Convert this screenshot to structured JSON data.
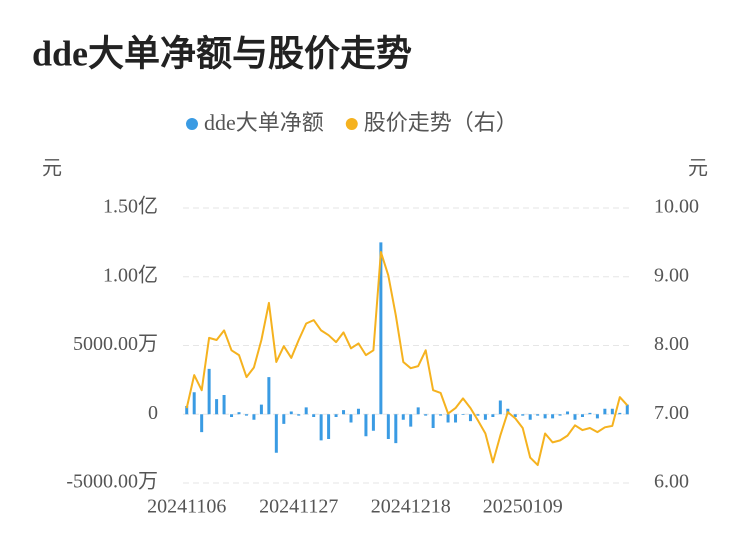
{
  "chart_data": {
    "type": "bar-line",
    "title": "dde大单净额与股价走势",
    "y_label": "元",
    "y2_label": "元",
    "categories": [
      "20241106",
      null,
      null,
      null,
      null,
      null,
      null,
      null,
      null,
      null,
      null,
      null,
      null,
      null,
      null,
      "20241127",
      null,
      null,
      null,
      null,
      null,
      null,
      null,
      null,
      null,
      null,
      null,
      null,
      null,
      null,
      "20241218",
      null,
      null,
      null,
      null,
      null,
      null,
      null,
      null,
      null,
      null,
      null,
      null,
      null,
      null,
      "20250109",
      null,
      null,
      null,
      null,
      null,
      null,
      null,
      null,
      null,
      null,
      null,
      null,
      null,
      null
    ],
    "series": [
      {
        "name": "dde大单净额",
        "type": "bar",
        "color": "#3a9be3",
        "values": [
          600,
          1600,
          -1300,
          3300,
          1100,
          1400,
          -200,
          150,
          -100,
          -400,
          700,
          2700,
          -2800,
          -700,
          200,
          -100,
          500,
          -200,
          -1900,
          -1800,
          -200,
          300,
          -600,
          400,
          -1600,
          -1200,
          12500,
          -1800,
          -2100,
          -400,
          -900,
          500,
          -100,
          -1000,
          -100,
          -600,
          -600,
          -50,
          -500,
          -100,
          -400,
          -200,
          1000,
          400,
          -200,
          -100,
          -400,
          -100,
          -300,
          -300,
          -100,
          200,
          -400,
          -200,
          100,
          -300,
          400,
          400,
          100,
          700
        ]
      },
      {
        "name": "股价走势（右）",
        "type": "line",
        "axis": "y2",
        "color": "#f5b21f",
        "values": [
          7.09,
          7.57,
          7.35,
          8.11,
          8.08,
          8.22,
          7.93,
          7.86,
          7.54,
          7.68,
          8.08,
          8.62,
          7.76,
          7.99,
          7.82,
          8.08,
          8.32,
          8.37,
          8.22,
          8.15,
          8.05,
          8.19,
          7.96,
          8.03,
          7.86,
          7.93,
          9.36,
          9.02,
          8.44,
          7.76,
          7.67,
          7.7,
          7.93,
          7.35,
          7.31,
          7.01,
          7.09,
          7.23,
          7.09,
          6.91,
          6.72,
          6.3,
          6.69,
          7.03,
          6.94,
          6.8,
          6.37,
          6.26,
          6.72,
          6.59,
          6.62,
          6.69,
          6.84,
          6.77,
          6.8,
          6.74,
          6.81,
          6.83,
          7.25,
          7.13
        ]
      }
    ],
    "ylim": [
      -5000,
      15000
    ],
    "yticks": [
      {
        "value": -5000,
        "label": "-5000.00万"
      },
      0,
      {
        "value": 5000,
        "label": "5000.00万"
      },
      {
        "value": 10000,
        "label": "1.00亿"
      },
      {
        "value": 15000,
        "label": "1.50亿"
      }
    ],
    "y2lim": [
      6,
      10
    ],
    "y2ticks": [
      {
        "value": 6,
        "label": "6.00"
      },
      {
        "value": 7,
        "label": "7.00"
      },
      {
        "value": 8,
        "label": "8.00"
      },
      {
        "value": 9,
        "label": "9.00"
      },
      {
        "value": 10,
        "label": "10.00"
      }
    ],
    "grid": true,
    "legend": "top"
  }
}
